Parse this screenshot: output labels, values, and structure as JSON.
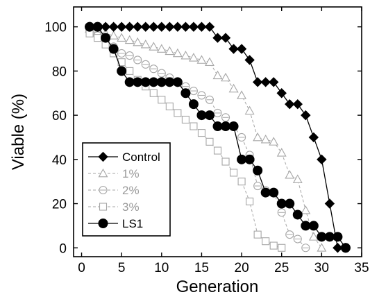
{
  "chart_data": {
    "type": "line",
    "title": "",
    "xlabel": "Generation",
    "ylabel": "Viable (%)",
    "xlim": [
      -1,
      35
    ],
    "ylim": [
      -4,
      109
    ],
    "xticks": [
      "0",
      "5",
      "10",
      "15",
      "20",
      "25",
      "30",
      "35"
    ],
    "yticks": [
      "0",
      "20",
      "40",
      "60",
      "80",
      "100"
    ],
    "legend_position": "bottom-left",
    "grid": false,
    "series": [
      {
        "name": "Control",
        "marker": "diamond",
        "filled": true,
        "color": "#000000",
        "dashed": false,
        "x": [
          1,
          2,
          3,
          4,
          5,
          6,
          7,
          8,
          9,
          10,
          11,
          12,
          13,
          14,
          15,
          16,
          17,
          18,
          19,
          20,
          21,
          22,
          23,
          24,
          25,
          26,
          27,
          28,
          29,
          30,
          31,
          32,
          33
        ],
        "y": [
          100,
          100,
          100,
          100,
          100,
          100,
          100,
          100,
          100,
          100,
          100,
          100,
          100,
          100,
          100,
          100,
          95,
          95,
          90,
          90,
          85,
          75,
          75,
          75,
          70,
          65,
          65,
          60,
          50,
          40,
          20,
          0,
          0
        ]
      },
      {
        "name": "1%",
        "marker": "triangle",
        "filled": false,
        "color": "#a6a6a6",
        "dashed": true,
        "x": [
          1,
          2,
          3,
          4,
          5,
          6,
          7,
          8,
          9,
          10,
          11,
          12,
          13,
          14,
          15,
          16,
          17,
          18,
          19,
          20,
          21,
          22,
          23,
          24,
          25,
          26,
          27,
          28,
          29,
          30
        ],
        "y": [
          99,
          98,
          97,
          96,
          95,
          94,
          93,
          92,
          91,
          90,
          89,
          88,
          87,
          86,
          85,
          84,
          78,
          77,
          72,
          69,
          62,
          50,
          49,
          48,
          43,
          33,
          31,
          17,
          5,
          0
        ]
      },
      {
        "name": "2%",
        "marker": "circle",
        "filled": false,
        "color": "#a6a6a6",
        "dashed": true,
        "x": [
          1,
          2,
          3,
          4,
          5,
          6,
          7,
          8,
          9,
          10,
          11,
          12,
          13,
          14,
          15,
          16,
          17,
          18,
          19,
          20,
          21,
          22,
          23,
          24,
          25,
          26,
          27,
          28
        ],
        "y": [
          98,
          96,
          94,
          91,
          88,
          87,
          85,
          83,
          81,
          79,
          77,
          75,
          73,
          71,
          69,
          67,
          61,
          59,
          55,
          50,
          42,
          28,
          26,
          25,
          16,
          6,
          4,
          0
        ]
      },
      {
        "name": "3%",
        "marker": "square",
        "filled": false,
        "color": "#a6a6a6",
        "dashed": true,
        "x": [
          1,
          2,
          3,
          4,
          5,
          6,
          7,
          8,
          9,
          10,
          11,
          12,
          13,
          14,
          15,
          16,
          17,
          18,
          19,
          20,
          21,
          22,
          23,
          24,
          25
        ],
        "y": [
          97,
          95,
          92,
          88,
          84,
          80,
          76,
          73,
          70,
          67,
          64,
          61,
          58,
          55,
          52,
          48,
          44,
          39,
          34,
          30,
          21,
          6,
          3,
          1,
          0
        ]
      },
      {
        "name": "LS1",
        "marker": "circle",
        "filled": true,
        "color": "#000000",
        "dashed": false,
        "x": [
          1,
          2,
          3,
          4,
          5,
          6,
          7,
          8,
          9,
          10,
          11,
          12,
          13,
          14,
          15,
          16,
          17,
          18,
          19,
          20,
          21,
          22,
          23,
          24,
          25,
          26,
          27,
          28,
          29,
          30,
          31,
          32,
          33
        ],
        "y": [
          100,
          100,
          95,
          90,
          80,
          75,
          75,
          75,
          75,
          75,
          75,
          75,
          70,
          65,
          60,
          60,
          55,
          55,
          55,
          40,
          40,
          35,
          25,
          25,
          20,
          20,
          15,
          10,
          10,
          5,
          5,
          5,
          0
        ]
      }
    ]
  }
}
